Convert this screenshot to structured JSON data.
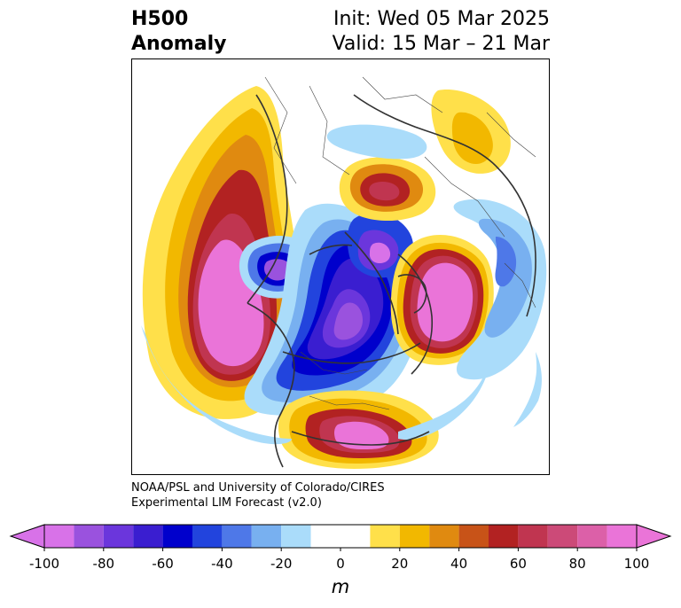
{
  "title": {
    "left_line1": "H500",
    "left_line2": "Anomaly",
    "right_line1": "Init: Wed 05 Mar 2025",
    "right_line2": "Valid: 15 Mar – 21 Mar"
  },
  "credit": {
    "line1": "NOAA/PSL and University of Colorado/CIRES",
    "line2": "Experimental LIM Forecast (v2.0)"
  },
  "colorbar": {
    "unit": "m",
    "tick_labels": [
      "-100",
      "-80",
      "-60",
      "-40",
      "-20",
      "0",
      "20",
      "40",
      "60",
      "80",
      "100"
    ],
    "tick_values": [
      -100,
      -80,
      -60,
      -40,
      -20,
      0,
      20,
      40,
      60,
      80,
      100
    ],
    "levels": [
      -100,
      -90,
      -80,
      -70,
      -60,
      -50,
      -40,
      -30,
      -20,
      -10,
      10,
      20,
      30,
      40,
      50,
      60,
      70,
      80,
      90,
      100
    ],
    "colors": [
      "#d872e8",
      "#9a52de",
      "#6b36dc",
      "#3a1ed0",
      "#0000cc",
      "#2244dd",
      "#4e78e8",
      "#78b0f0",
      "#aadcfa",
      "#ffffff",
      "#ffe04a",
      "#f2b800",
      "#e08a10",
      "#c85318",
      "#b22222",
      "#c03550",
      "#cc4a78",
      "#dc60a8",
      "#ea74d8"
    ],
    "extend_low_color": "#d872e8",
    "extend_high_color": "#ea74d8"
  },
  "map": {
    "projection": "north-polar-stereographic",
    "field": "500 hPa geopotential height anomaly"
  }
}
